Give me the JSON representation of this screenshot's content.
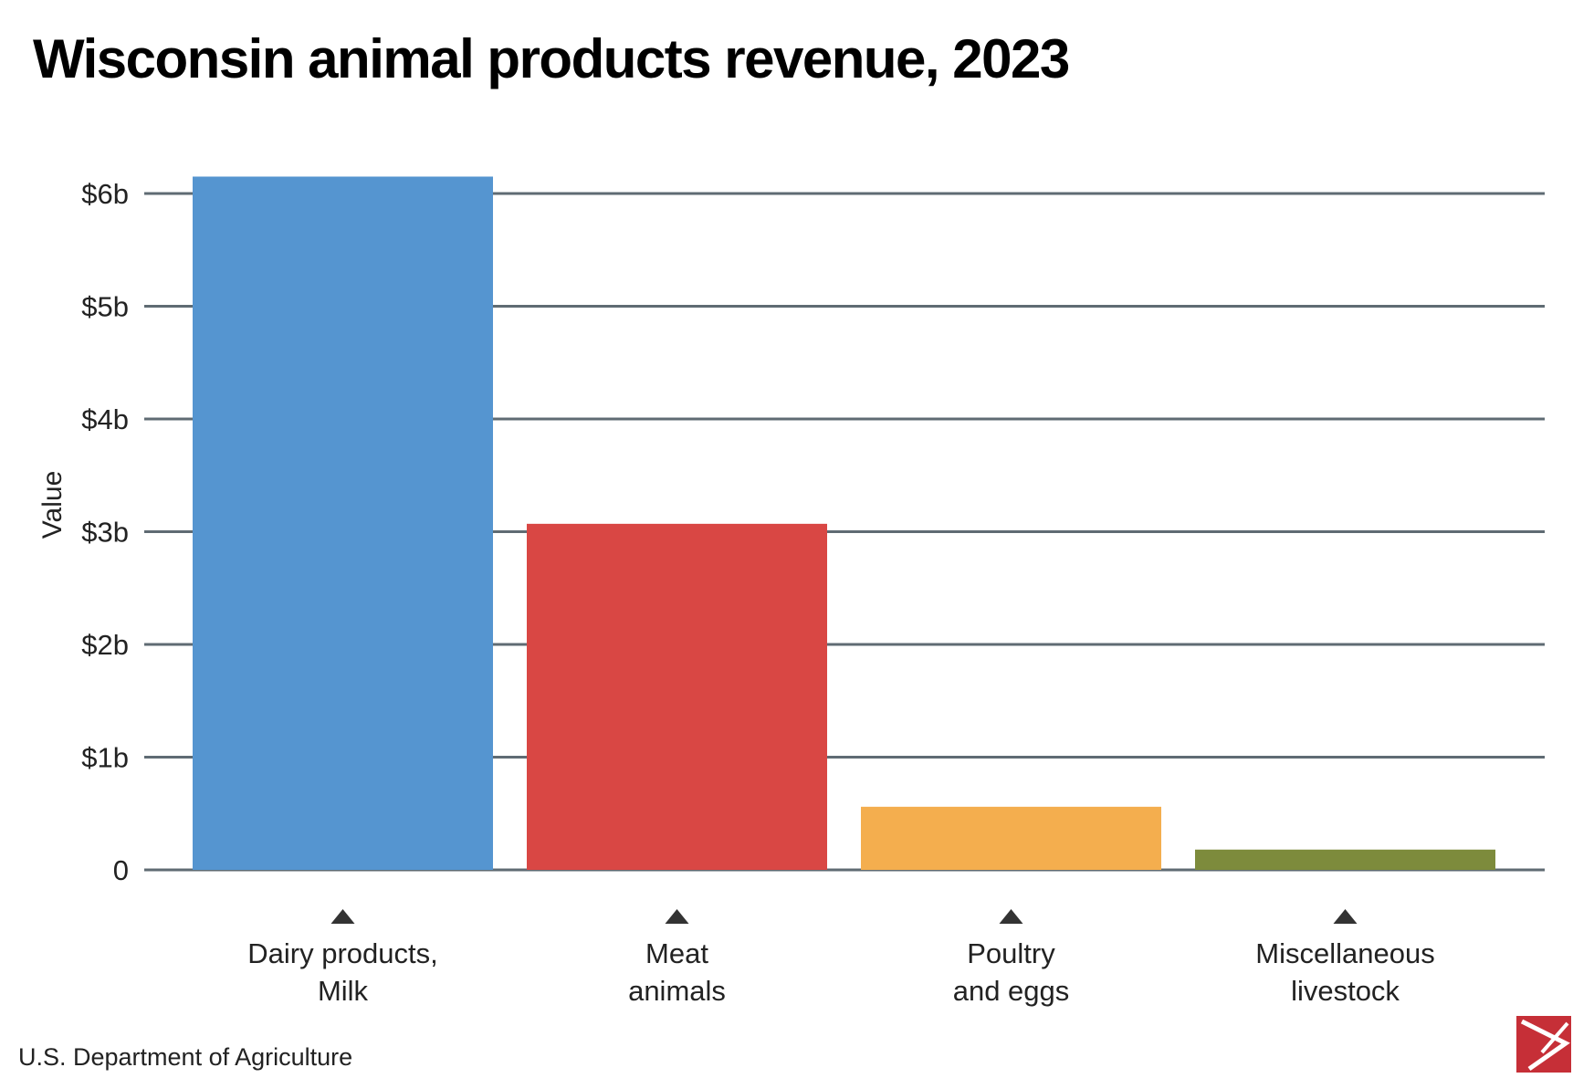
{
  "title": "Wisconsin animal products revenue, 2023",
  "source": "U.S. Department of Agriculture",
  "logo_icon": "publisher-logo-icon",
  "chart_data": {
    "type": "bar",
    "title": "Wisconsin animal products revenue, 2023",
    "ylabel": "Value",
    "xlabel": "",
    "categories": [
      [
        "Dairy products,",
        "Milk"
      ],
      [
        "Meat",
        "animals"
      ],
      [
        "Poultry",
        "and eggs"
      ],
      [
        "Miscellaneous",
        "livestock"
      ]
    ],
    "values": [
      6.15,
      3.07,
      0.56,
      0.18
    ],
    "unit": "billion dollars",
    "colors": [
      "#5595d0",
      "#d94744",
      "#f4ae4e",
      "#7d8b3c"
    ],
    "ylim": [
      0,
      6
    ],
    "yticks": [
      {
        "value": 0,
        "label": "0"
      },
      {
        "value": 1,
        "label": "$1b"
      },
      {
        "value": 2,
        "label": "$2b"
      },
      {
        "value": 3,
        "label": "$3b"
      },
      {
        "value": 4,
        "label": "$4b"
      },
      {
        "value": 5,
        "label": "$5b"
      },
      {
        "value": 6,
        "label": "$6b"
      }
    ],
    "grid": true,
    "gridColor": "#5f6b73",
    "markerColor": "#333333"
  }
}
